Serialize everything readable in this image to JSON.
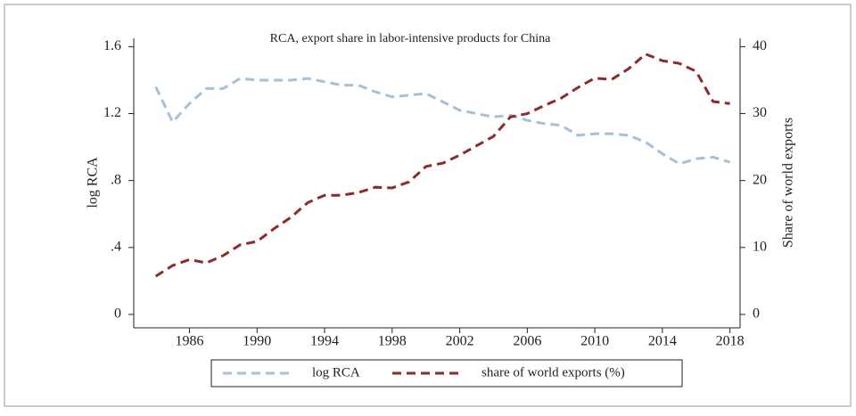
{
  "chart_data": {
    "type": "line",
    "title": "RCA, export share in labor-intensive products for China",
    "y_label": "log  RCA",
    "y2_label": "Share of  world exports",
    "x": [
      1984,
      1985,
      1986,
      1987,
      1988,
      1989,
      1990,
      1991,
      1992,
      1993,
      1994,
      1995,
      1996,
      1997,
      1998,
      1999,
      2000,
      2001,
      2002,
      2003,
      2004,
      2005,
      2006,
      2007,
      2008,
      2009,
      2010,
      2011,
      2012,
      2013,
      2014,
      2015,
      2016,
      2017,
      2018
    ],
    "series": [
      {
        "name": "log RCA",
        "color": "#a8bfd8",
        "values": [
          1.36,
          1.15,
          1.26,
          1.35,
          1.35,
          1.41,
          1.4,
          1.4,
          1.4,
          1.41,
          1.39,
          1.37,
          1.37,
          1.33,
          1.3,
          1.31,
          1.32,
          1.27,
          1.22,
          1.2,
          1.18,
          1.19,
          1.16,
          1.14,
          1.13,
          1.07,
          1.08,
          1.08,
          1.07,
          1.03,
          0.96,
          0.9,
          0.93,
          0.94,
          0.91
        ]
      },
      {
        "name": "share of world exports (%)",
        "color": "#8b2b2b",
        "axis": "y2",
        "values": [
          5.7,
          7.3,
          8.2,
          7.7,
          8.8,
          10.4,
          10.9,
          12.8,
          14.5,
          16.7,
          17.8,
          17.8,
          18.2,
          19.0,
          18.9,
          19.8,
          22.1,
          22.6,
          23.8,
          25.2,
          26.6,
          29.5,
          30.0,
          31.2,
          32.3,
          33.9,
          35.3,
          35.1,
          36.7,
          38.9,
          37.9,
          37.5,
          36.3,
          31.8,
          31.5
        ]
      }
    ],
    "xlim": [
      1982.7,
      2018.6
    ],
    "xticks": [
      1986,
      1990,
      1994,
      1998,
      2002,
      2006,
      2010,
      2014,
      2018
    ],
    "ylim": [
      -0.08,
      1.65
    ],
    "yticks": [
      0,
      {
        "value": 0.4,
        "label": ".4"
      },
      {
        "value": 0.8,
        "label": ".8"
      },
      1.2,
      1.6
    ],
    "y2lim": [
      -2,
      41.25
    ],
    "y2ticks": [
      0,
      10,
      20,
      30,
      40
    ],
    "legend": "bottom",
    "grid": false
  }
}
